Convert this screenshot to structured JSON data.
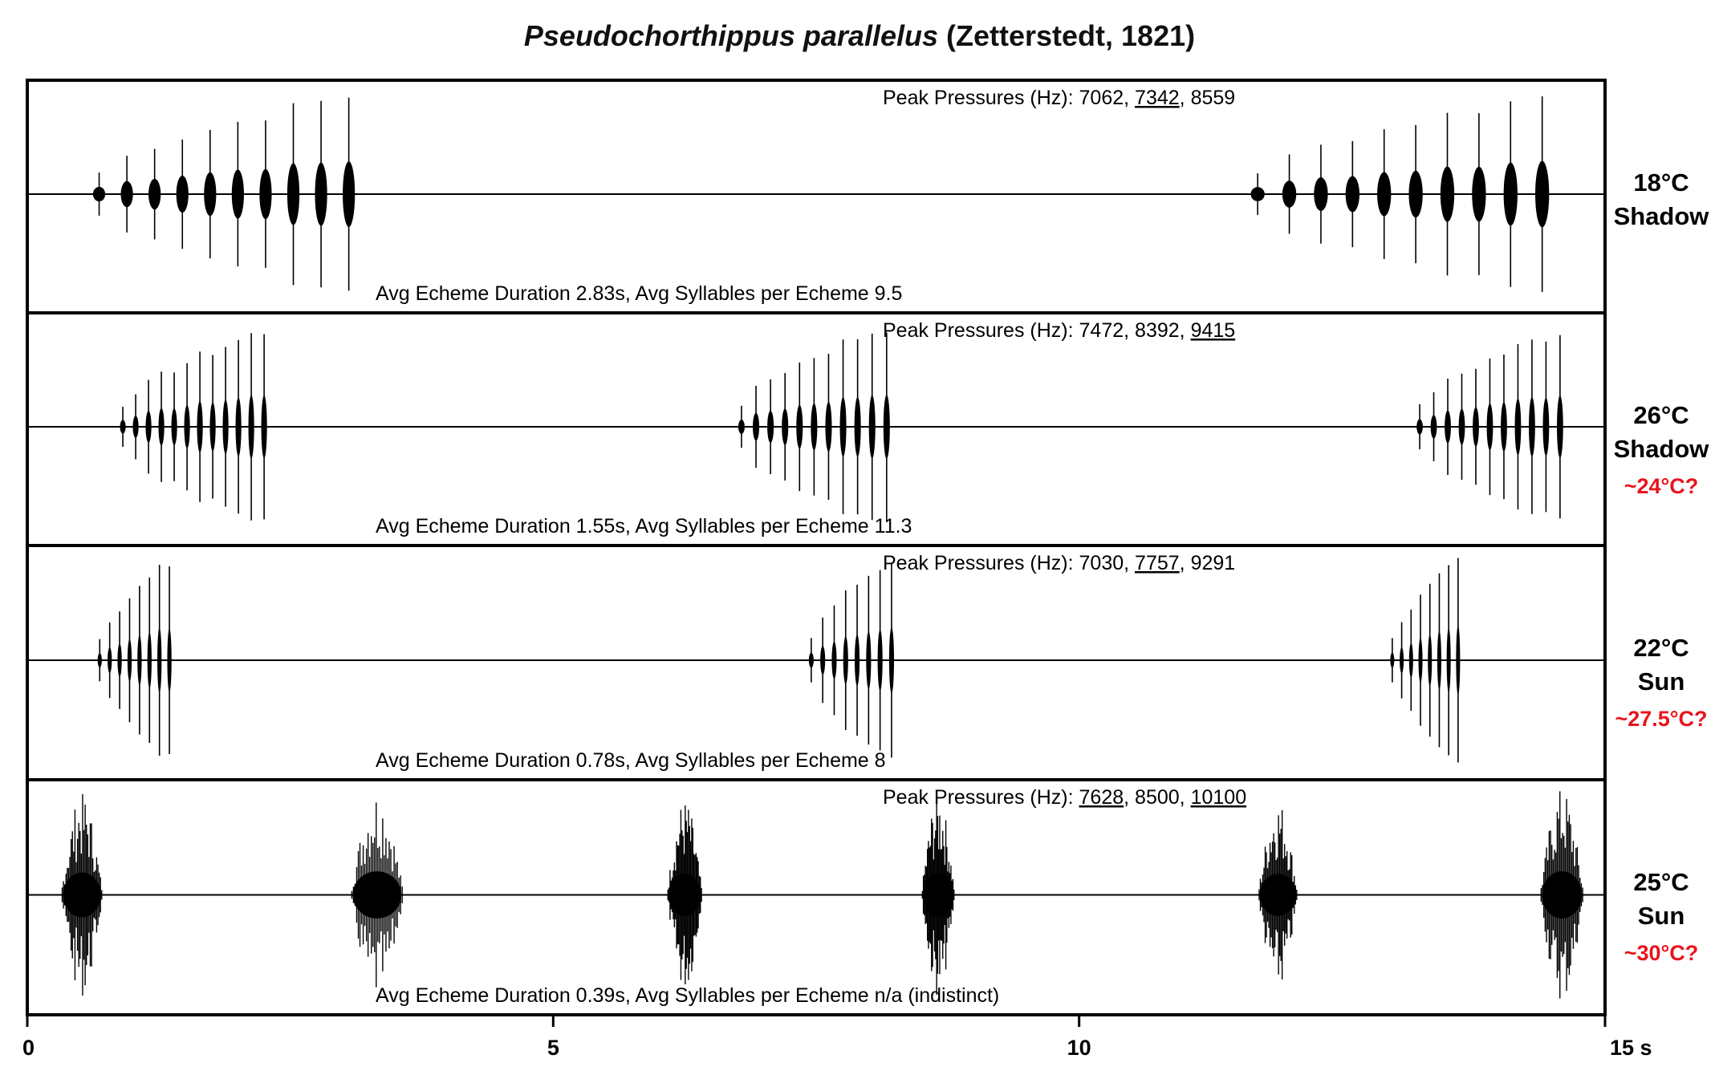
{
  "figure": {
    "title_species": "Pseudochorthippus parallelus",
    "title_author": "(Zetterstedt, 1821)"
  },
  "colors": {
    "waveform": "#000000",
    "estimate_text": "#e8141b",
    "frame": "#000000"
  },
  "chart_data": {
    "type": "line",
    "subtype": "oscillogram",
    "title": "Pseudochorthippus parallelus (Zetterstedt, 1821)",
    "xlabel": "",
    "ylabel": "",
    "xlim": [
      0,
      15
    ],
    "x_unit": "s",
    "x_ticks": [
      {
        "value": 0,
        "label": "0"
      },
      {
        "value": 5,
        "label": "5"
      },
      {
        "value": 10,
        "label": "10"
      },
      {
        "value": 15,
        "label": "15 s"
      }
    ],
    "grid": false,
    "legend": "none",
    "series": [
      {
        "temperature": "18°C",
        "condition": "Shadow",
        "estimate": "",
        "peak_label": "Peak Pressures (Hz): ",
        "peaks": [
          {
            "value": "7062",
            "underlined": false
          },
          {
            "value": "7342",
            "underlined": true
          },
          {
            "value": "8559",
            "underlined": false
          }
        ],
        "summary": "Avg Echeme Duration 2.83s, Avg Syllables per Echeme 9.5",
        "avg_echeme_duration_s": 2.83,
        "avg_syllables_per_echeme": 9.5,
        "echemes": [
          {
            "start": 0.58,
            "end": 3.16,
            "syllables": 10,
            "amp": 0.95
          },
          {
            "start": 11.58,
            "end": 14.52,
            "syllables": 10,
            "amp": 0.95
          }
        ]
      },
      {
        "temperature": "26°C",
        "condition": "Shadow",
        "estimate": "~24°C?",
        "peak_label": "Peak Pressures (Hz): ",
        "peaks": [
          {
            "value": "7472",
            "underlined": false
          },
          {
            "value": "8392",
            "underlined": false
          },
          {
            "value": "9415",
            "underlined": true
          }
        ],
        "summary": "Avg Echeme Duration 1.55s, Avg Syllables per Echeme 11.3",
        "avg_echeme_duration_s": 1.55,
        "avg_syllables_per_echeme": 11.3,
        "echemes": [
          {
            "start": 0.85,
            "end": 2.31,
            "syllables": 12,
            "amp": 0.93
          },
          {
            "start": 6.73,
            "end": 8.23,
            "syllables": 11,
            "amp": 0.98
          },
          {
            "start": 13.18,
            "end": 14.63,
            "syllables": 11,
            "amp": 0.93
          }
        ]
      },
      {
        "temperature": "22°C",
        "condition": "Sun",
        "estimate": "~27.5°C?",
        "peak_label": "Peak Pressures (Hz): ",
        "peaks": [
          {
            "value": "7030",
            "underlined": false
          },
          {
            "value": "7757",
            "underlined": true
          },
          {
            "value": "9291",
            "underlined": false
          }
        ],
        "summary": "Avg Echeme Duration 0.78s, Avg Syllables per Echeme 8",
        "avg_echeme_duration_s": 0.78,
        "avg_syllables_per_echeme": 8,
        "echemes": [
          {
            "start": 0.66,
            "end": 1.38,
            "syllables": 8,
            "amp": 0.93
          },
          {
            "start": 7.42,
            "end": 8.25,
            "syllables": 8,
            "amp": 0.98
          },
          {
            "start": 12.95,
            "end": 13.63,
            "syllables": 8,
            "amp": 0.93
          }
        ]
      },
      {
        "temperature": "25°C",
        "condition": "Sun",
        "estimate": "~30°C?",
        "peak_label": "Peak Pressures (Hz): ",
        "peaks": [
          {
            "value": "7628",
            "underlined": true
          },
          {
            "value": "8500",
            "underlined": false
          },
          {
            "value": "10100",
            "underlined": true
          }
        ],
        "summary": "Avg Echeme Duration 0.39s, Avg Syllables per Echeme n/a (indistinct)",
        "avg_echeme_duration_s": 0.39,
        "avg_syllables_per_echeme": "n/a (indistinct)",
        "echemes": [
          {
            "start": 0.32,
            "end": 0.72,
            "syllables": 0,
            "amp": 0.9
          },
          {
            "start": 3.07,
            "end": 3.58,
            "syllables": 0,
            "amp": 0.95
          },
          {
            "start": 6.08,
            "end": 6.42,
            "syllables": 0,
            "amp": 0.85
          },
          {
            "start": 8.5,
            "end": 8.82,
            "syllables": 0,
            "amp": 0.9
          },
          {
            "start": 11.7,
            "end": 12.08,
            "syllables": 0,
            "amp": 0.85
          },
          {
            "start": 14.38,
            "end": 14.8,
            "syllables": 0,
            "amp": 0.95
          }
        ]
      }
    ]
  }
}
